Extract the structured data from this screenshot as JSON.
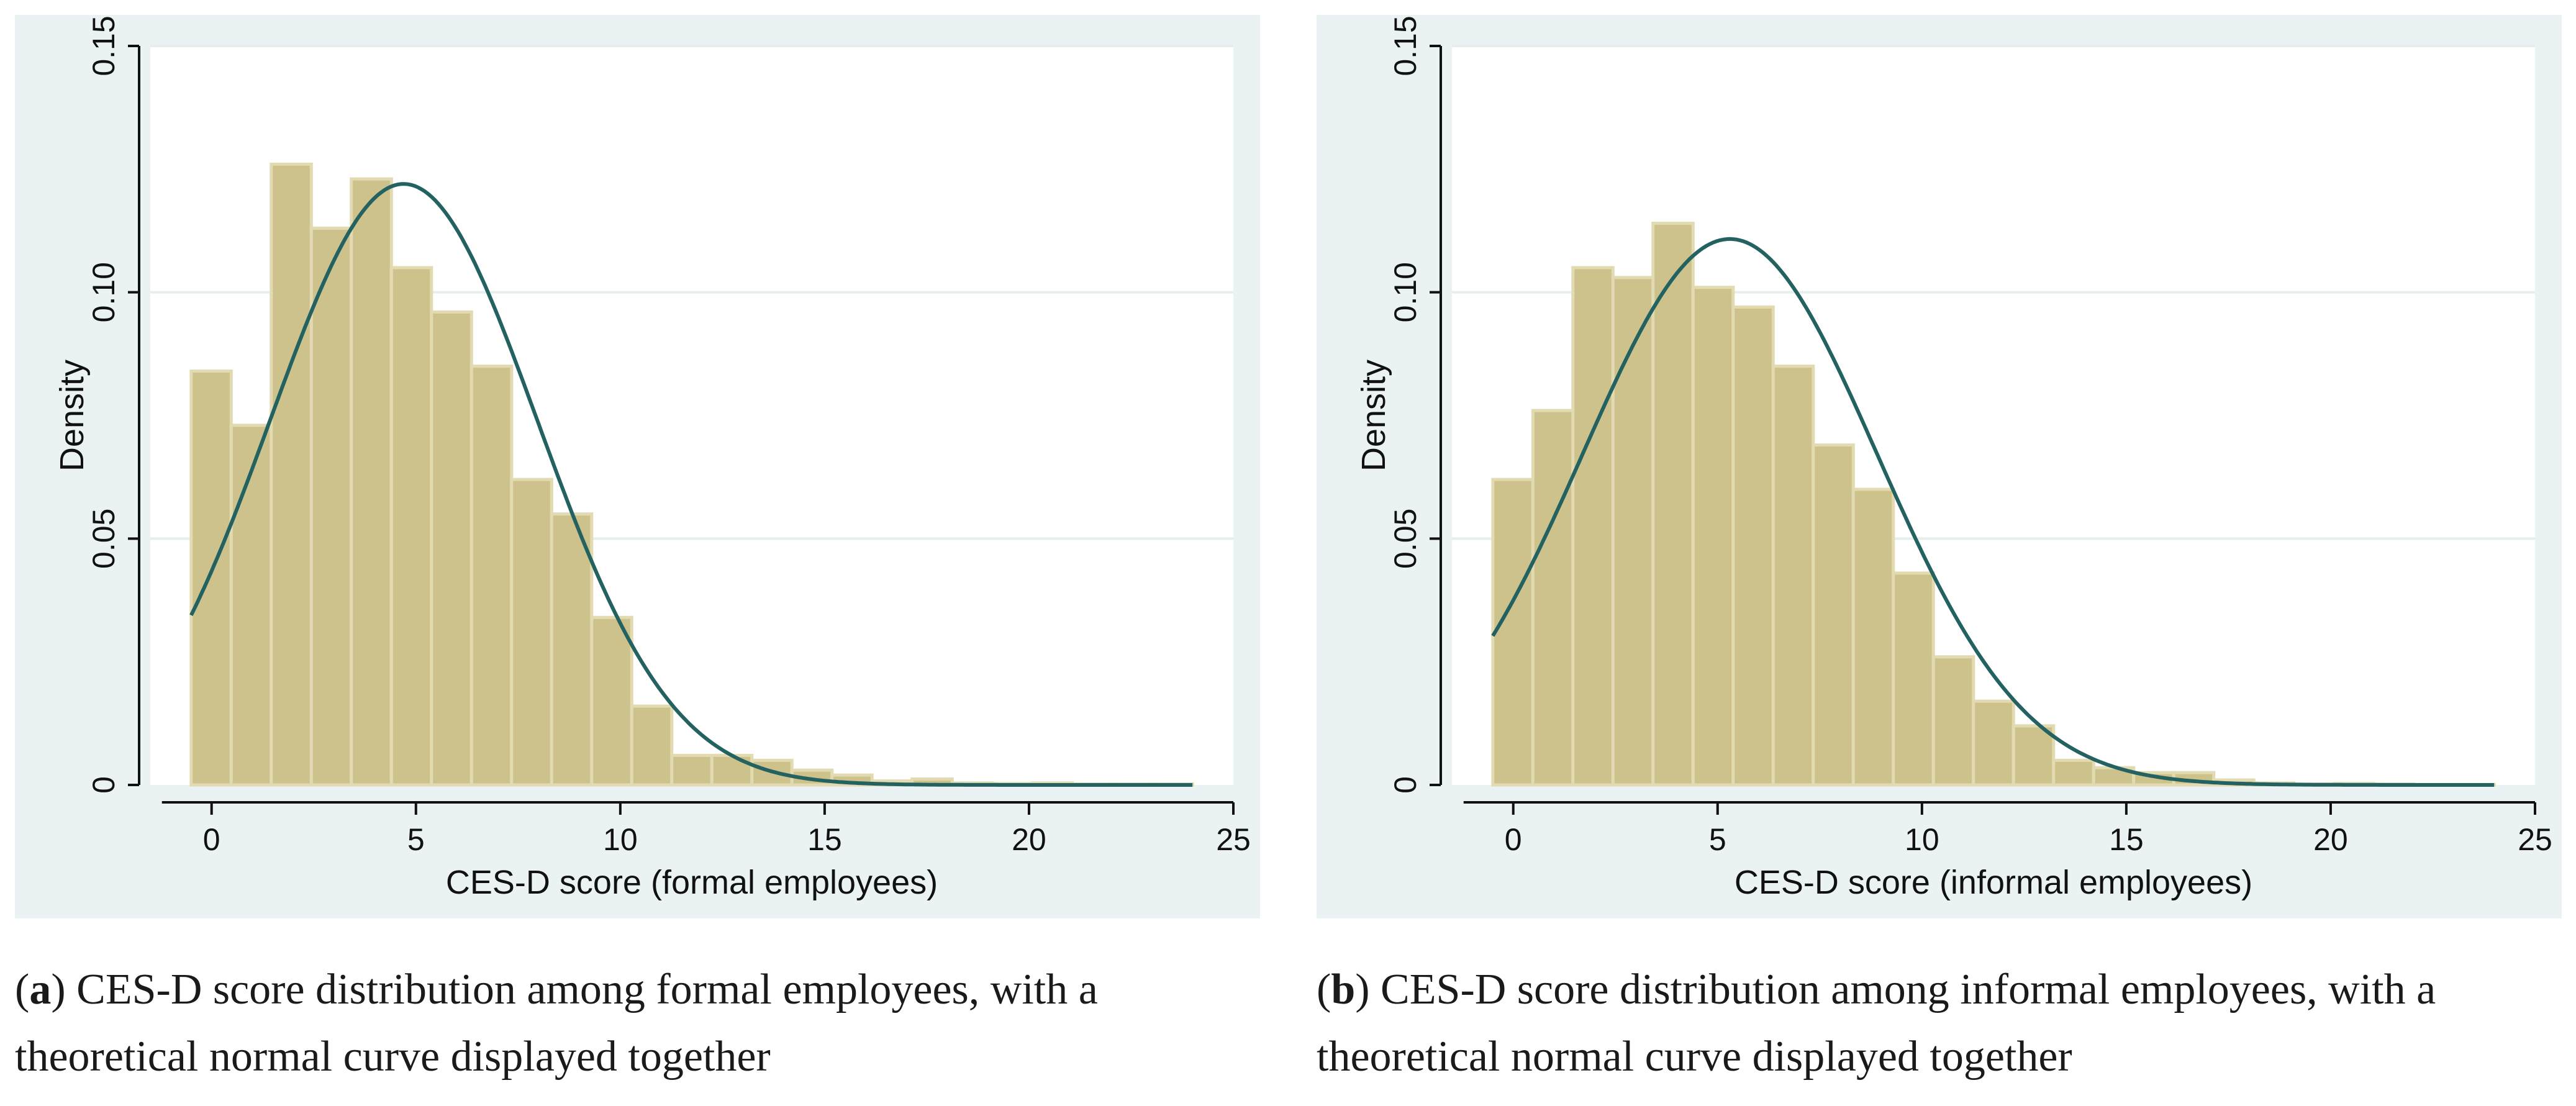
{
  "chart_data": [
    {
      "type": "bar",
      "subtype": "histogram with normal density overlay",
      "title": "",
      "xlabel": "CES-D score (formal employees)",
      "ylabel": "Density",
      "xlim": [
        -1.5,
        25.0
      ],
      "ylim": [
        0,
        0.15
      ],
      "xticks": [
        0,
        5,
        10,
        15,
        20,
        25
      ],
      "xtick_labels": [
        "0",
        "5",
        "10",
        "15",
        "20",
        "25"
      ],
      "yticks": [
        0,
        0.05,
        0.1,
        0.15
      ],
      "ytick_labels": [
        "0",
        "0.05",
        "0.10",
        "0.15"
      ],
      "grid": true,
      "bin_start": -0.5,
      "bin_width": 0.98,
      "values": [
        0.084,
        0.073,
        0.126,
        0.113,
        0.123,
        0.105,
        0.096,
        0.085,
        0.062,
        0.055,
        0.034,
        0.016,
        0.006,
        0.006,
        0.005,
        0.003,
        0.002,
        0.0008,
        0.0012,
        0.0004,
        0.0003,
        0.0004,
        0.0002,
        0.0002,
        0.0002
      ],
      "normal_curve": {
        "mean": 4.7,
        "sd": 3.27
      },
      "bar_color": "#cdc28c",
      "bar_edge_color": "#e2dab0",
      "curve_color": "#246262"
    },
    {
      "type": "bar",
      "subtype": "histogram with normal density overlay",
      "title": "",
      "xlabel": "CES-D score (informal employees)",
      "ylabel": "Density",
      "xlim": [
        -1.5,
        25.0
      ],
      "ylim": [
        0,
        0.15
      ],
      "xticks": [
        0,
        5,
        10,
        15,
        20,
        25
      ],
      "xtick_labels": [
        "0",
        "5",
        "10",
        "15",
        "20",
        "25"
      ],
      "yticks": [
        0,
        0.05,
        0.1,
        0.15
      ],
      "ytick_labels": [
        "0",
        "0.05",
        "0.10",
        "0.15"
      ],
      "grid": true,
      "bin_start": -0.5,
      "bin_width": 0.98,
      "values": [
        0.062,
        0.076,
        0.105,
        0.103,
        0.114,
        0.101,
        0.097,
        0.085,
        0.069,
        0.06,
        0.043,
        0.026,
        0.017,
        0.012,
        0.005,
        0.0035,
        0.0025,
        0.0025,
        0.001,
        0.0004,
        0.0002,
        0.0003,
        0.0002,
        0.0001,
        0.0001
      ],
      "normal_curve": {
        "mean": 5.3,
        "sd": 3.6
      },
      "bar_color": "#cdc28c",
      "bar_edge_color": "#e2dab0",
      "curve_color": "#246262"
    }
  ],
  "captions": {
    "a": {
      "label": "a",
      "text": ") CES-D score distribution among formal employees, with a theoretical normal curve displayed together"
    },
    "b": {
      "label": "b",
      "text": ") CES-D score distribution among informal employees, with a theoretical normal curve displayed together"
    }
  }
}
